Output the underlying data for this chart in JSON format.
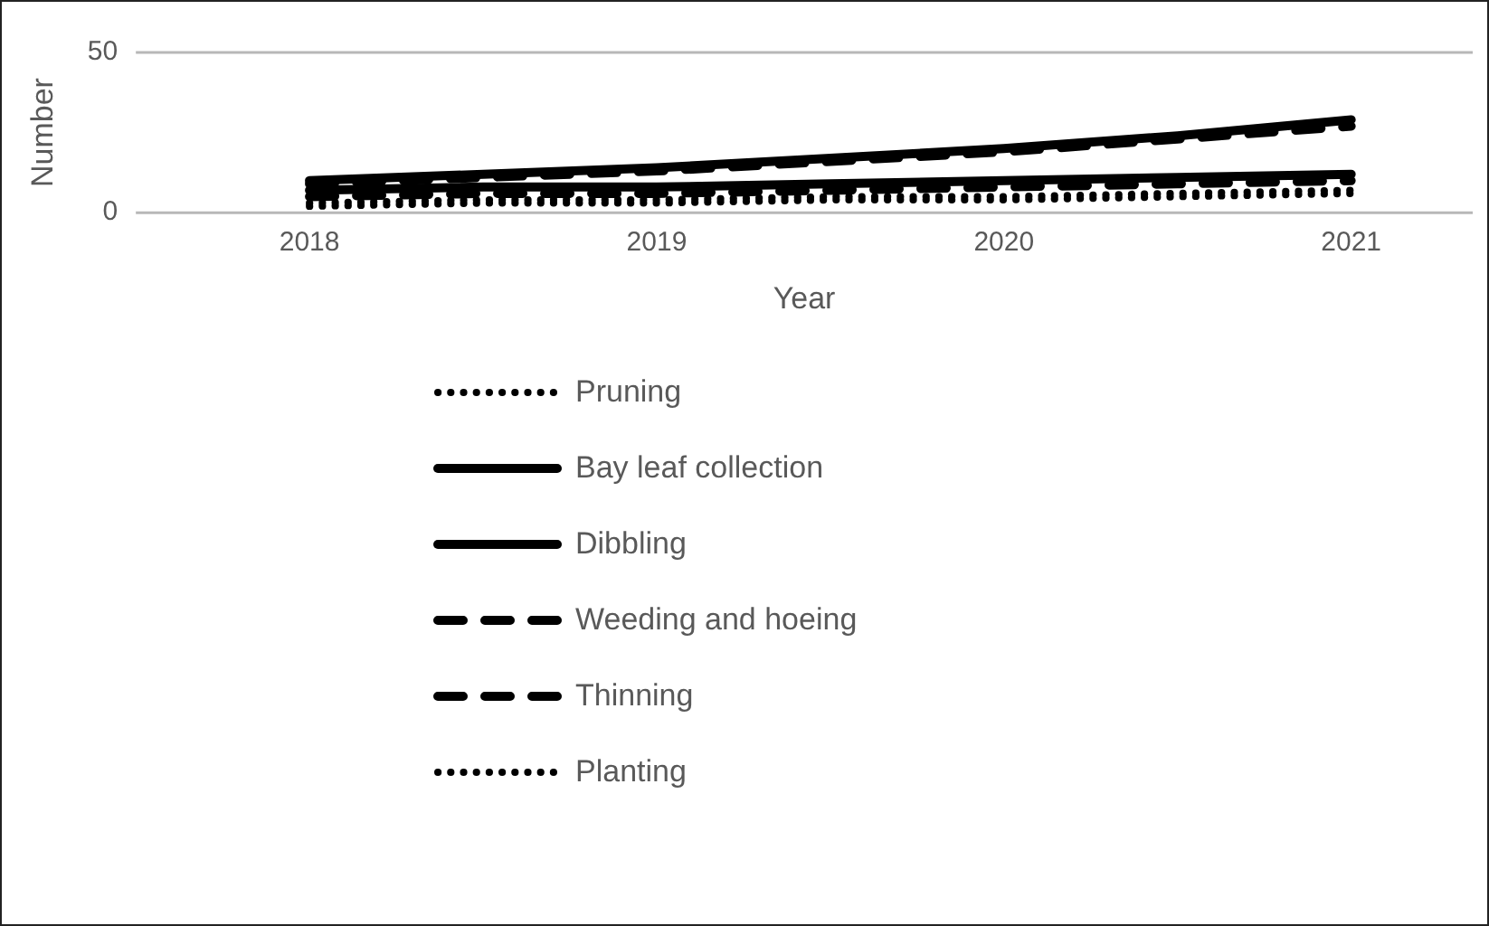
{
  "chart_data": {
    "type": "line",
    "xlabel": "Year",
    "ylabel": "Number",
    "x": [
      2018,
      2018.5,
      2019,
      2019.5,
      2020,
      2020.5,
      2021
    ],
    "xlim": [
      2017.5,
      2021.35
    ],
    "xticks": [
      2018,
      2019,
      2020,
      2021
    ],
    "ylim": [
      0,
      50
    ],
    "yticks": [
      0,
      50
    ],
    "legend": "bottom",
    "series": [
      {
        "name": "Pruning",
        "color": "#000000",
        "line_style": "dotted",
        "values": [
          3,
          4,
          4,
          5,
          5,
          6,
          7
        ]
      },
      {
        "name": "Bay leaf collection",
        "color": "#000000",
        "line_style": "solid",
        "values": [
          10,
          12,
          14,
          17,
          20,
          24,
          29
        ]
      },
      {
        "name": "Dibbling",
        "color": "#000000",
        "line_style": "solid",
        "values": [
          7,
          8,
          8,
          9,
          10,
          11,
          12
        ]
      },
      {
        "name": "Weeding and hoeing",
        "color": "#000000",
        "line_style": "dashed",
        "values": [
          9,
          11,
          13,
          16,
          19,
          23,
          27
        ]
      },
      {
        "name": "Thinning",
        "color": "#000000",
        "line_style": "dashed",
        "values": [
          5,
          6,
          6,
          7,
          8,
          9,
          10
        ]
      },
      {
        "name": "Planting",
        "color": "#000000",
        "line_style": "dotted",
        "values": [
          2,
          3,
          3,
          4,
          4,
          5,
          6
        ]
      }
    ]
  }
}
